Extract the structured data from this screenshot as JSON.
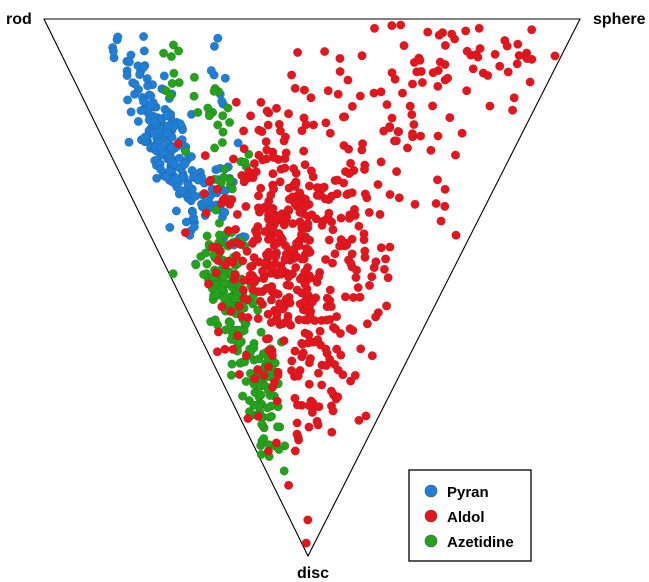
{
  "chart_data": {
    "type": "scatter",
    "plot": "ternary shape triangle (rod / sphere / disc)",
    "vertices": {
      "top_left": "rod",
      "top_right": "sphere",
      "bottom": "disc"
    },
    "coordinates": "barycentric fractions (rod, sphere, disc), summing to 1",
    "legend": {
      "placement": "bottom-right",
      "boxed": true
    },
    "series": [
      {
        "name": "Pyran",
        "color": "#1e7fd8",
        "cluster_count": 230,
        "cluster_center": [
          0.66,
          0.11,
          0.23
        ],
        "points": [
          [
            0.84,
            0.1,
            0.06
          ],
          [
            0.8,
            0.12,
            0.08
          ],
          [
            0.76,
            0.1,
            0.14
          ],
          [
            0.72,
            0.12,
            0.16
          ],
          [
            0.7,
            0.08,
            0.22
          ],
          [
            0.68,
            0.14,
            0.18
          ],
          [
            0.66,
            0.1,
            0.24
          ],
          [
            0.64,
            0.12,
            0.24
          ],
          [
            0.62,
            0.11,
            0.27
          ],
          [
            0.6,
            0.13,
            0.27
          ],
          [
            0.58,
            0.1,
            0.32
          ],
          [
            0.56,
            0.14,
            0.3
          ],
          [
            0.55,
            0.12,
            0.33
          ],
          [
            0.54,
            0.1,
            0.36
          ],
          [
            0.52,
            0.14,
            0.34
          ],
          [
            0.6,
            0.26,
            0.14
          ],
          [
            0.5,
            0.18,
            0.32
          ],
          [
            0.48,
            0.16,
            0.36
          ]
        ]
      },
      {
        "name": "Aldol",
        "color": "#e8141c",
        "cluster_count": 620,
        "cluster_center": [
          0.34,
          0.24,
          0.42
        ],
        "points": [
          [
            0.08,
            0.9,
            0.02
          ],
          [
            0.12,
            0.84,
            0.04
          ],
          [
            0.18,
            0.76,
            0.06
          ],
          [
            0.22,
            0.7,
            0.08
          ],
          [
            0.3,
            0.6,
            0.1
          ],
          [
            0.38,
            0.48,
            0.14
          ],
          [
            0.2,
            0.56,
            0.24
          ],
          [
            0.26,
            0.46,
            0.28
          ],
          [
            0.3,
            0.4,
            0.3
          ],
          [
            0.34,
            0.3,
            0.36
          ],
          [
            0.36,
            0.24,
            0.4
          ],
          [
            0.34,
            0.2,
            0.46
          ],
          [
            0.3,
            0.22,
            0.48
          ],
          [
            0.28,
            0.18,
            0.54
          ],
          [
            0.24,
            0.2,
            0.56
          ],
          [
            0.2,
            0.2,
            0.6
          ],
          [
            0.18,
            0.18,
            0.64
          ],
          [
            0.16,
            0.16,
            0.68
          ],
          [
            0.14,
            0.14,
            0.72
          ],
          [
            0.12,
            0.12,
            0.76
          ],
          [
            0.4,
            0.2,
            0.4
          ],
          [
            0.42,
            0.16,
            0.42
          ],
          [
            0.44,
            0.14,
            0.42
          ],
          [
            0.2,
            0.4,
            0.4
          ],
          [
            0.16,
            0.34,
            0.5
          ]
        ]
      },
      {
        "name": "Azetidine",
        "color": "#22a319",
        "cluster_count": 230,
        "cluster_center": [
          0.4,
          0.1,
          0.5
        ],
        "points": [
          [
            0.7,
            0.18,
            0.12
          ],
          [
            0.6,
            0.22,
            0.18
          ],
          [
            0.56,
            0.2,
            0.24
          ],
          [
            0.5,
            0.2,
            0.3
          ],
          [
            0.48,
            0.14,
            0.38
          ],
          [
            0.46,
            0.1,
            0.44
          ],
          [
            0.44,
            0.08,
            0.48
          ],
          [
            0.4,
            0.08,
            0.52
          ],
          [
            0.38,
            0.1,
            0.52
          ],
          [
            0.34,
            0.08,
            0.58
          ],
          [
            0.3,
            0.08,
            0.62
          ],
          [
            0.28,
            0.06,
            0.66
          ],
          [
            0.26,
            0.08,
            0.66
          ],
          [
            0.24,
            0.06,
            0.7
          ],
          [
            0.2,
            0.06,
            0.74
          ],
          [
            0.22,
            0.04,
            0.74
          ]
        ]
      }
    ]
  }
}
